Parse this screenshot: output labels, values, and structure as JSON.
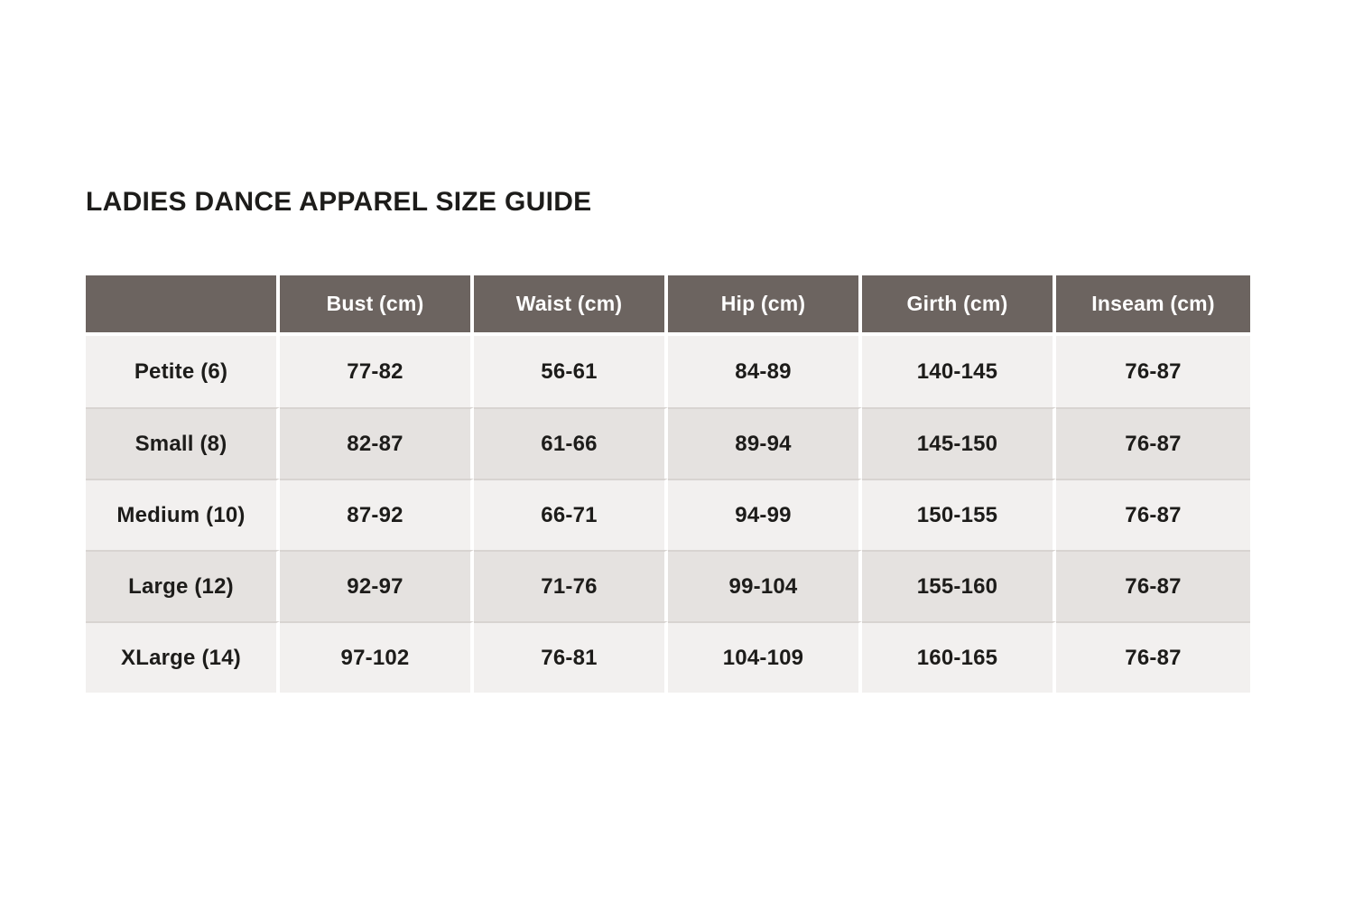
{
  "page": {
    "background": "#ffffff"
  },
  "title": "LADIES DANCE APPAREL SIZE GUIDE",
  "table": {
    "columns": [
      "",
      "Bust (cm)",
      "Waist (cm)",
      "Hip (cm)",
      "Girth (cm)",
      "Inseam (cm)"
    ],
    "rows": [
      {
        "label": "Petite (6)",
        "values": [
          "77-82",
          "56-61",
          "84-89",
          "140-145",
          "76-87"
        ]
      },
      {
        "label": "Small (8)",
        "values": [
          "82-87",
          "61-66",
          "89-94",
          "145-150",
          "76-87"
        ]
      },
      {
        "label": "Medium (10)",
        "values": [
          "87-92",
          "66-71",
          "94-99",
          "150-155",
          "76-87"
        ]
      },
      {
        "label": "Large (12)",
        "values": [
          "92-97",
          "71-76",
          "99-104",
          "155-160",
          "76-87"
        ]
      },
      {
        "label": "XLarge (14)",
        "values": [
          "97-102",
          "76-81",
          "104-109",
          "160-165",
          "76-87"
        ]
      }
    ],
    "colors": {
      "header_bg": "#6c6460",
      "header_text": "#ffffff",
      "row_light": "#f2f0ef",
      "row_dark": "#e5e2e0",
      "row_divider": "#d8d4d1",
      "column_divider": "#ffffff",
      "body_text": "#1d1c1a"
    }
  }
}
